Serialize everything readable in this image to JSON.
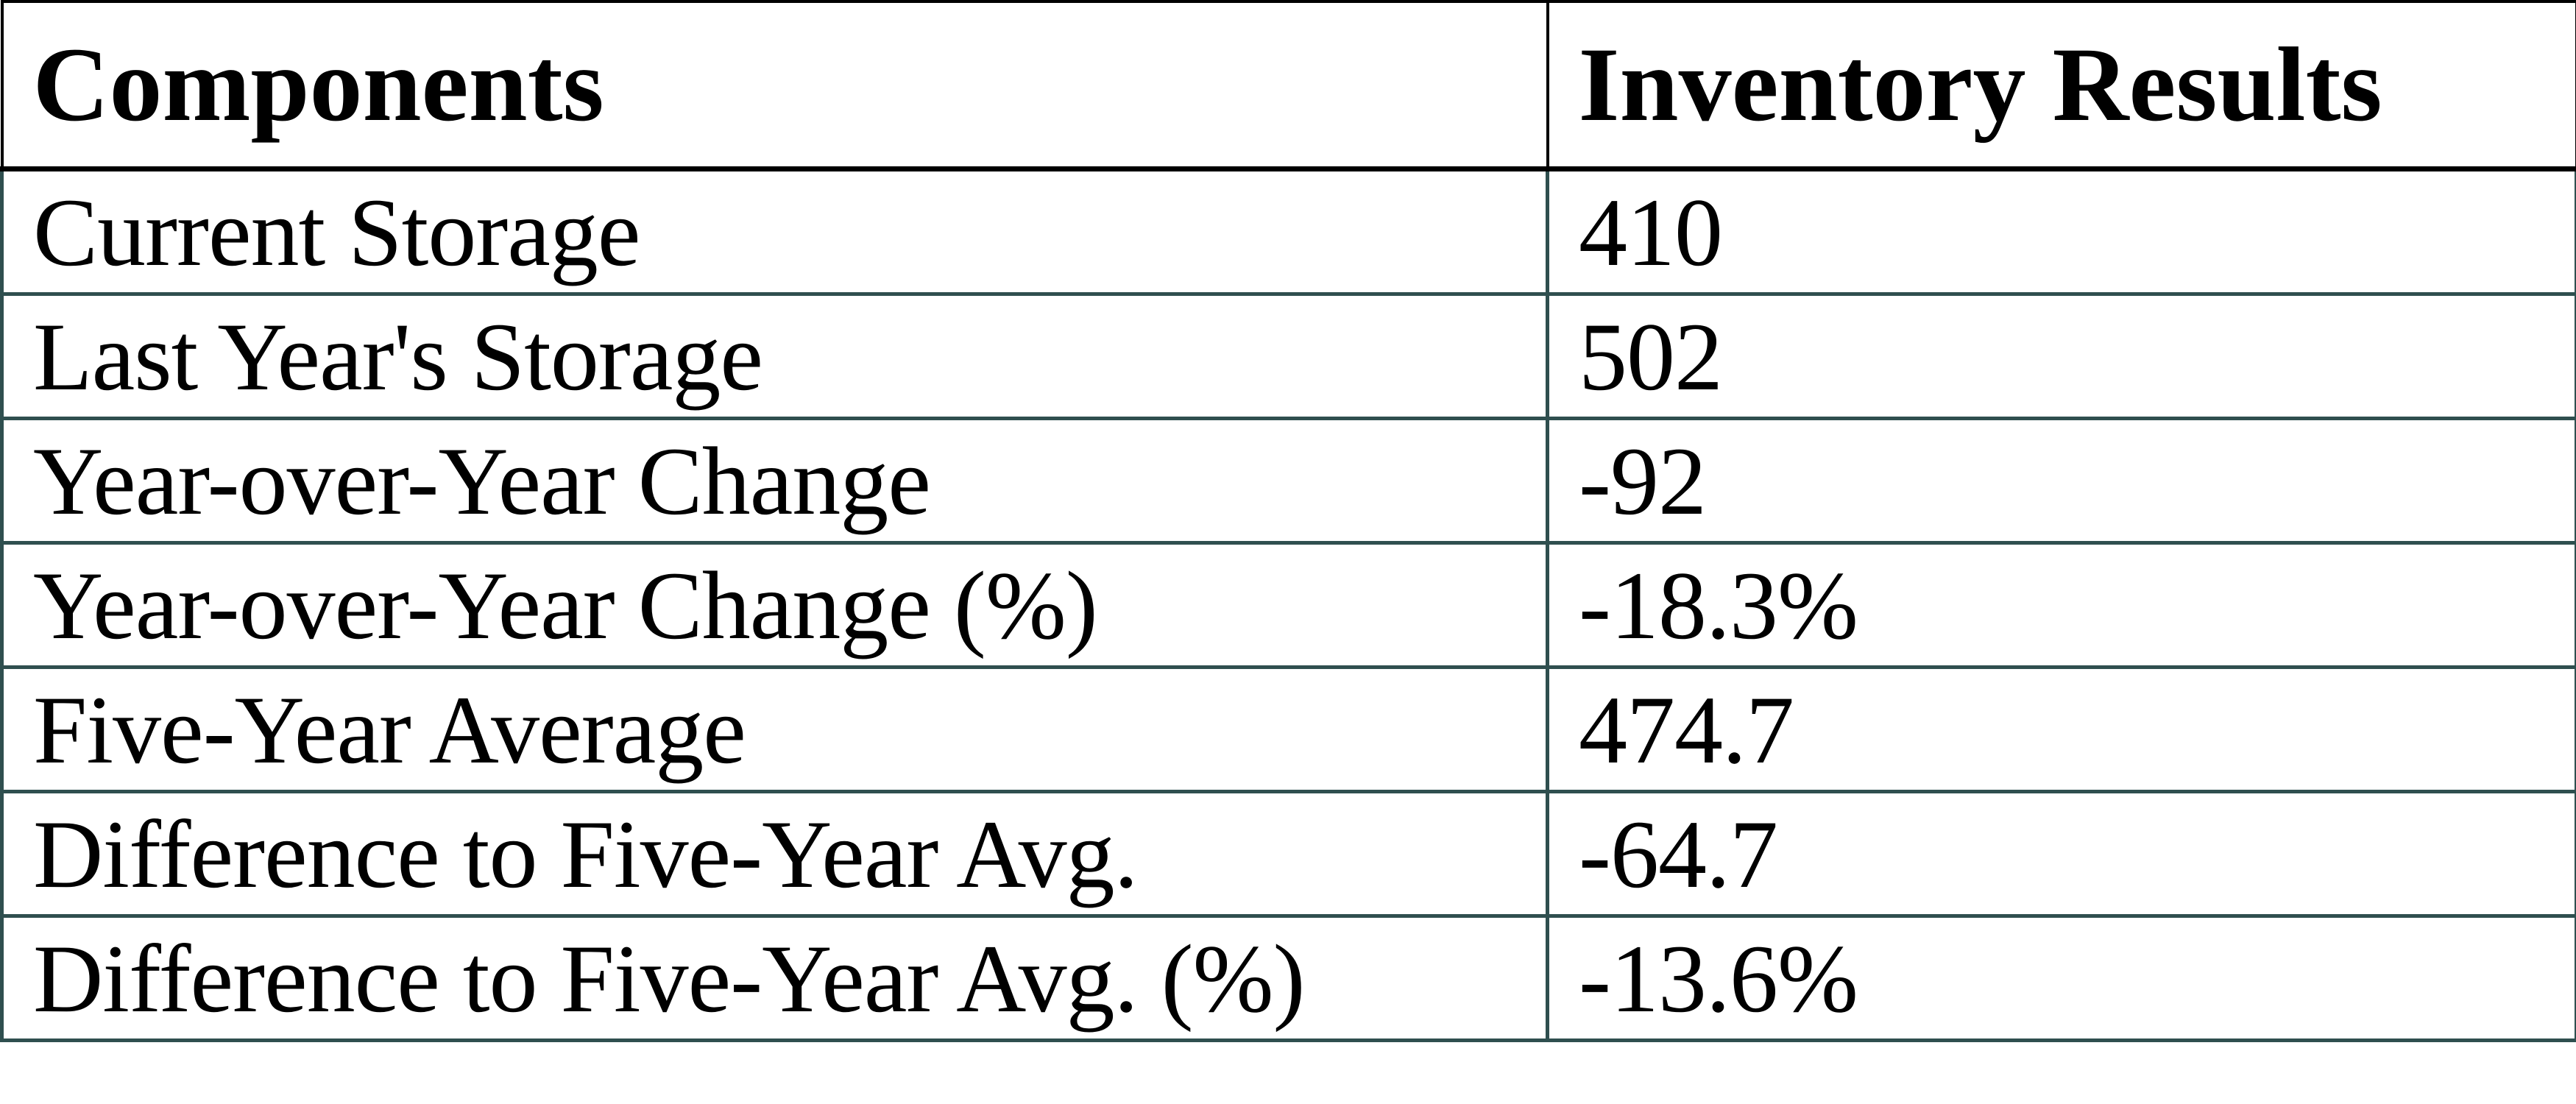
{
  "chart_data": {
    "type": "table",
    "columns": [
      "Components",
      "Inventory Results"
    ],
    "rows": [
      {
        "label": "Current Storage",
        "value": "410"
      },
      {
        "label": "Last Year's Storage",
        "value": "502"
      },
      {
        "label": "Year-over-Year Change",
        "value": "-92"
      },
      {
        "label": "Year-over-Year Change (%)",
        "value": "-18.3%"
      },
      {
        "label": "Five-Year Average",
        "value": "474.7"
      },
      {
        "label": "Difference to Five-Year Avg.",
        "value": "-64.7"
      },
      {
        "label": "Difference to Five-Year Avg. (%)",
        "value": "-13.6%"
      }
    ],
    "layout": {
      "legend": "none",
      "grid": "full-borders"
    }
  },
  "colors": {
    "header_border": "#000000",
    "body_border": "#2F4F4F",
    "text": "#000000",
    "background": "#FFFFFF"
  }
}
